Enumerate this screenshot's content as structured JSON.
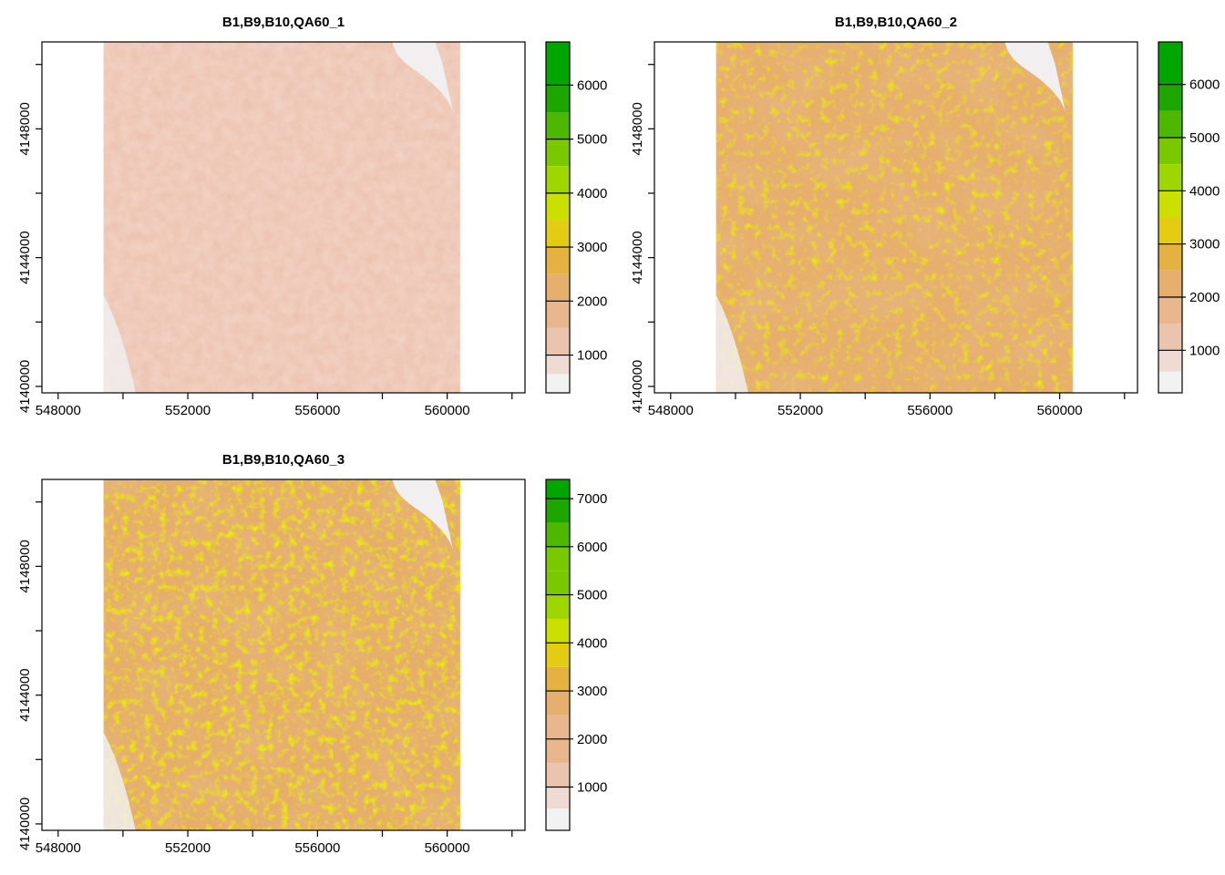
{
  "chart_data": [
    {
      "type": "heatmap",
      "title": "B1,B9,B10,QA60_1",
      "x_ticks": [
        548000,
        552000,
        556000,
        560000
      ],
      "y_ticks": [
        4140000,
        4144000,
        4148000
      ],
      "xlim": [
        547500,
        562400
      ],
      "ylim": [
        4139800,
        4150700
      ],
      "raster_extent": {
        "x": [
          549400,
          560400
        ],
        "y": [
          4139800,
          4150700
        ]
      },
      "legend_ticks": [
        1000,
        2000,
        3000,
        4000,
        5000,
        6000
      ],
      "legend_range": [
        300,
        6800
      ],
      "dominant_value_range": [
        1200,
        1800
      ],
      "grid": false,
      "legend_position": "right"
    },
    {
      "type": "heatmap",
      "title": "B1,B9,B10,QA60_2",
      "x_ticks": [
        548000,
        552000,
        556000,
        560000
      ],
      "y_ticks": [
        4140000,
        4144000,
        4148000
      ],
      "xlim": [
        547500,
        562400
      ],
      "ylim": [
        4139800,
        4150700
      ],
      "raster_extent": {
        "x": [
          549400,
          560400
        ],
        "y": [
          4139800,
          4150700
        ]
      },
      "legend_ticks": [
        1000,
        2000,
        3000,
        4000,
        5000,
        6000
      ],
      "legend_tick_labels": [
        "1000",
        "2000",
        "3000",
        "4000",
        "5000",
        "6000"
      ],
      "legend_range": [
        200,
        6800
      ],
      "dominant_value_range": [
        2200,
        3200
      ],
      "grid": false,
      "legend_position": "right"
    },
    {
      "type": "heatmap",
      "title": "B1,B9,B10,QA60_3",
      "x_ticks": [
        548000,
        552000,
        556000,
        560000
      ],
      "y_ticks": [
        4140000,
        4144000,
        4148000
      ],
      "xlim": [
        547500,
        562400
      ],
      "ylim": [
        4139800,
        4150700
      ],
      "raster_extent": {
        "x": [
          549400,
          560400
        ],
        "y": [
          4139800,
          4150700
        ]
      },
      "legend_ticks": [
        1000,
        2000,
        3000,
        4000,
        5000,
        6000,
        7000
      ],
      "legend_range": [
        100,
        7400
      ],
      "dominant_value_range": [
        2300,
        3400
      ],
      "grid": false,
      "legend_position": "right"
    }
  ],
  "colors": {
    "legend_bins": [
      "#F2F2F2",
      "#EFDBD3",
      "#EBC4AF",
      "#E8B78E",
      "#E6AF6E",
      "#E3B240",
      "#E3CC13",
      "#CCE000",
      "#A0D600",
      "#79C800",
      "#4EB800",
      "#1EA600",
      "#00A600"
    ],
    "panel_base": [
      "#EDC3B0",
      "#E6AF6E",
      "#E5AE6B"
    ],
    "highlight": [
      "#EBC4AF",
      "#DCD100",
      "#D8D900"
    ],
    "water": "#F1EFEF",
    "frame": "#000000"
  }
}
